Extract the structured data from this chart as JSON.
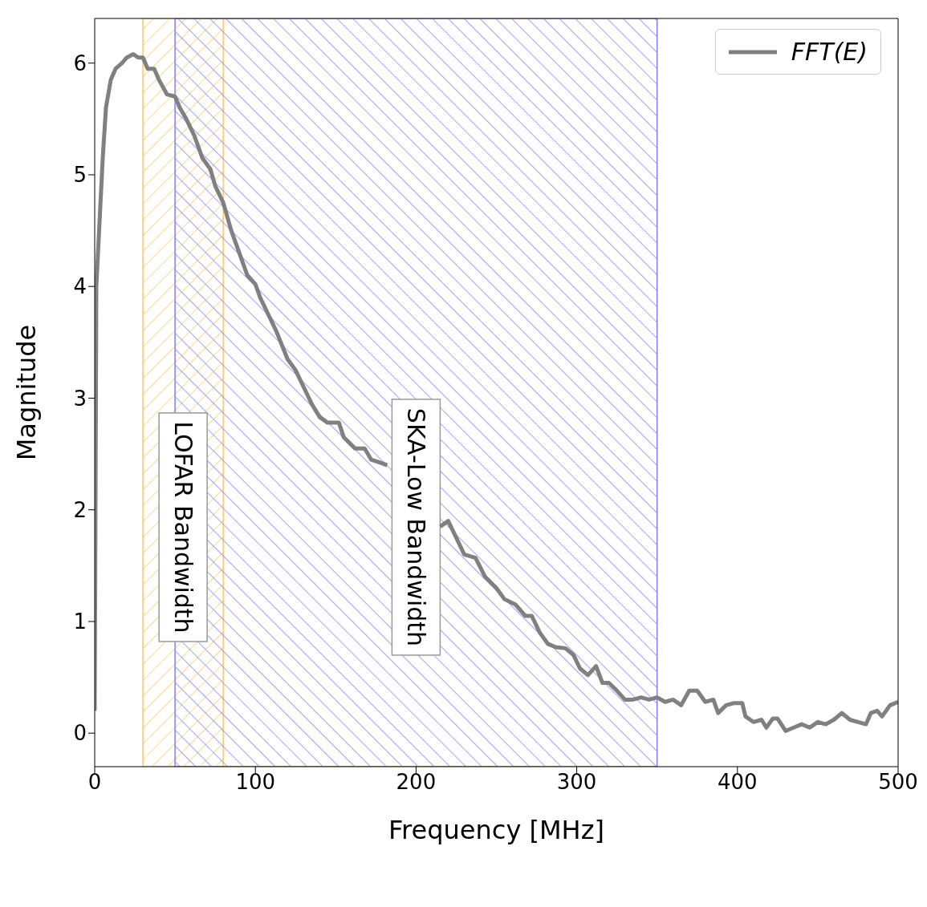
{
  "chart_data": {
    "type": "line",
    "xlabel": "Frequency [MHz]",
    "ylabel": "Magnitude",
    "xlim": [
      0,
      500
    ],
    "xticks": [
      0,
      100,
      200,
      300,
      400,
      500
    ],
    "ylim": [
      -0.3,
      6.4
    ],
    "yticks": [
      0,
      1,
      2,
      3,
      4,
      5,
      6
    ],
    "grid": false,
    "legend": "top right",
    "marker": "none",
    "line_style": "solid",
    "x": [
      0,
      1,
      5,
      7,
      10,
      13,
      17,
      20,
      24,
      27,
      30,
      33,
      37,
      40,
      45,
      50,
      53,
      57,
      62,
      67,
      72,
      75,
      80,
      85,
      90,
      95,
      100,
      103,
      108,
      113,
      120,
      125,
      130,
      135,
      140,
      145,
      152,
      155,
      162,
      168,
      172,
      178,
      182,
      185,
      215,
      220,
      225,
      230,
      237,
      243,
      250,
      255,
      262,
      268,
      272,
      277,
      282,
      287,
      293,
      298,
      302,
      307,
      312,
      316,
      320,
      325,
      330,
      335,
      340,
      345,
      350,
      355,
      360,
      365,
      370,
      375,
      380,
      385,
      388,
      393,
      398,
      403,
      405,
      410,
      415,
      418,
      422,
      425,
      430,
      435,
      440,
      445,
      450,
      455,
      460,
      465,
      470,
      475,
      480,
      483,
      487,
      490,
      495,
      500
    ],
    "series": [
      {
        "name": "FFT(E)",
        "color": "#808080",
        "values": [
          0.2,
          4.0,
          5.15,
          5.6,
          5.85,
          5.95,
          6.0,
          6.05,
          6.08,
          6.05,
          6.05,
          5.95,
          5.95,
          5.85,
          5.72,
          5.7,
          5.6,
          5.5,
          5.35,
          5.15,
          5.05,
          4.9,
          4.75,
          4.5,
          4.3,
          4.1,
          4.02,
          3.9,
          3.75,
          3.6,
          3.35,
          3.25,
          3.1,
          2.95,
          2.83,
          2.78,
          2.78,
          2.65,
          2.55,
          2.55,
          2.45,
          2.42,
          2.4,
          null,
          1.85,
          1.9,
          1.75,
          1.6,
          1.57,
          1.4,
          1.3,
          1.2,
          1.15,
          1.05,
          1.05,
          0.9,
          0.8,
          0.77,
          0.76,
          0.7,
          0.58,
          0.52,
          0.6,
          0.45,
          0.45,
          0.38,
          0.3,
          0.3,
          0.32,
          0.3,
          0.32,
          0.28,
          0.3,
          0.25,
          0.38,
          0.38,
          0.28,
          0.3,
          0.18,
          0.25,
          0.27,
          0.27,
          0.15,
          0.1,
          0.12,
          0.05,
          0.13,
          0.13,
          0.02,
          0.05,
          0.08,
          0.05,
          0.1,
          0.08,
          0.12,
          0.18,
          0.12,
          0.1,
          0.08,
          0.18,
          0.2,
          0.15,
          0.25,
          0.28
        ]
      }
    ],
    "bands": [
      {
        "axis": "x",
        "from": 30,
        "to": 80,
        "label": "LOFAR Bandwidth",
        "color": "#ffc966"
      },
      {
        "axis": "x",
        "from": 50,
        "to": 350,
        "label": "SKA-Low Bandwidth",
        "color": "#8080ff"
      }
    ]
  }
}
